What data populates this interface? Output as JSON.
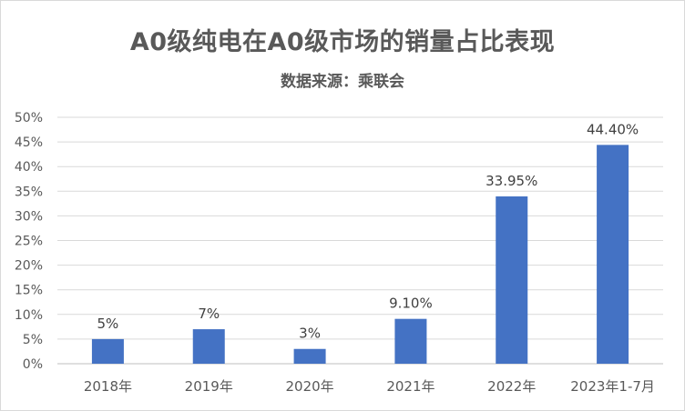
{
  "chart_data": {
    "type": "bar",
    "title": "A0级纯电在A0级市场的销量占比表现",
    "subtitle": "数据来源：乘联会",
    "categories": [
      "2018年",
      "2019年",
      "2020年",
      "2021年",
      "2022年",
      "2023年1-7月"
    ],
    "values": [
      5,
      7,
      3,
      9.1,
      33.95,
      44.4
    ],
    "data_labels": [
      "5%",
      "7%",
      "3%",
      "9.10%",
      "33.95%",
      "44.40%"
    ],
    "y_ticks": [
      "0%",
      "5%",
      "10%",
      "15%",
      "20%",
      "25%",
      "30%",
      "35%",
      "40%",
      "45%",
      "50%"
    ],
    "ylim": [
      0,
      50
    ],
    "grid": true,
    "legend": "none",
    "bar_color": "#4472c4"
  }
}
